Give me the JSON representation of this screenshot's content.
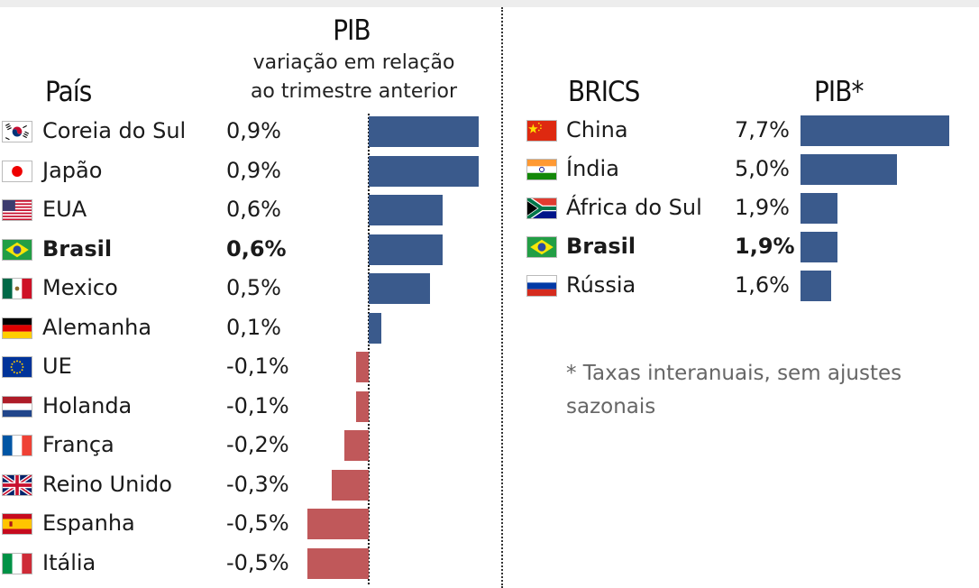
{
  "left": {
    "country_header": "País",
    "title": "PIB",
    "subtitle_line1": "variação em relação",
    "subtitle_line2": "ao trimestre anterior"
  },
  "right": {
    "country_header": "BRICS",
    "title": "PIB*",
    "note": "* Taxas interanuais, sem ajustes sazonais"
  },
  "colors": {
    "positive": "#3a5a8c",
    "negative": "#c0585a"
  },
  "chart_data": [
    {
      "type": "bar",
      "orientation": "horizontal",
      "title": "PIB",
      "subtitle": "variação em relação ao trimestre anterior",
      "categories": [
        "Coreia do Sul",
        "Japão",
        "EUA",
        "Brasil",
        "Mexico",
        "Alemanha",
        "UE",
        "Holanda",
        "França",
        "Reino Unido",
        "Espanha",
        "Itália"
      ],
      "values": [
        0.9,
        0.9,
        0.6,
        0.6,
        0.5,
        0.1,
        -0.1,
        -0.1,
        -0.2,
        -0.3,
        -0.5,
        -0.5
      ],
      "labels": [
        "0,9%",
        "0,9%",
        "0,6%",
        "0,6%",
        "0,5%",
        "0,1%",
        "-0,1%",
        "-0,1%",
        "-0,2%",
        "-0,3%",
        "-0,5%",
        "-0,5%"
      ],
      "flags": [
        "kr-flag-icon",
        "jp-flag-icon",
        "us-flag-icon",
        "br-flag-icon",
        "mx-flag-icon",
        "de-flag-icon",
        "eu-flag-icon",
        "nl-flag-icon",
        "fr-flag-icon",
        "gb-flag-icon",
        "es-flag-icon",
        "it-flag-icon"
      ],
      "highlight": "Brasil"
    },
    {
      "type": "bar",
      "orientation": "horizontal",
      "title": "PIB*",
      "categories": [
        "China",
        "Índia",
        "África do Sul",
        "Brasil",
        "Rússia"
      ],
      "values": [
        7.7,
        5.0,
        1.9,
        1.9,
        1.6
      ],
      "labels": [
        "7,7%",
        "5,0%",
        "1,9%",
        "1,9%",
        "1,6%"
      ],
      "flags": [
        "cn-flag-icon",
        "in-flag-icon",
        "za-flag-icon",
        "br-flag-icon",
        "ru-flag-icon"
      ],
      "highlight": "Brasil"
    }
  ]
}
